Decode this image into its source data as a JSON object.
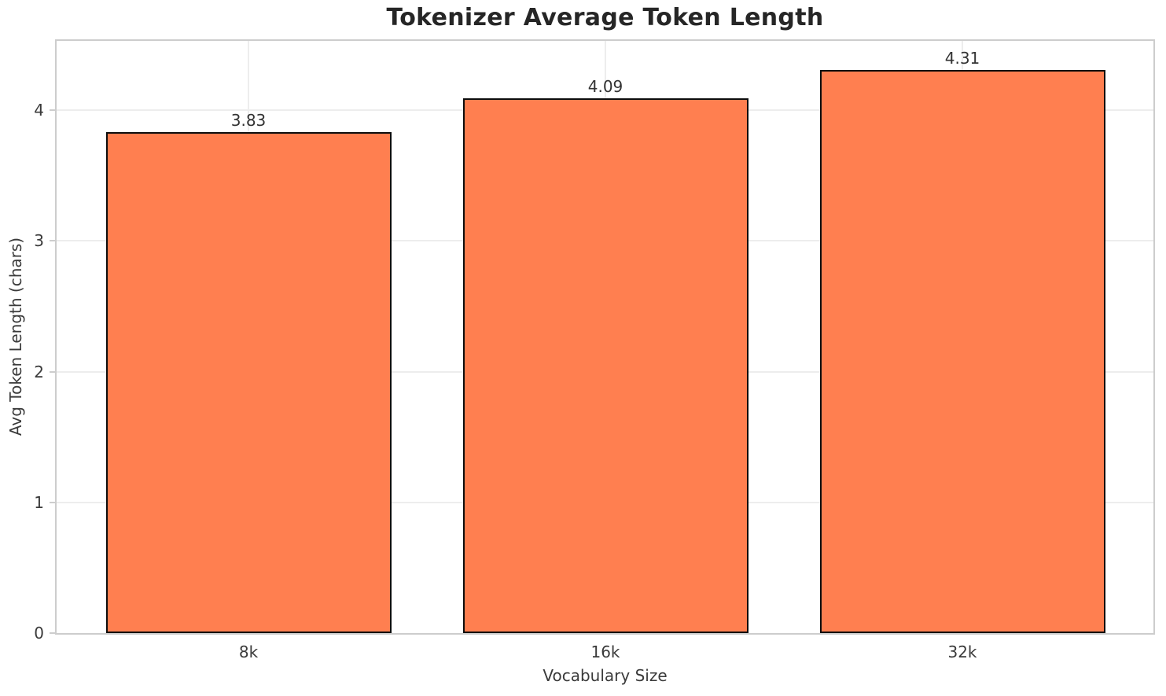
{
  "chart_data": {
    "type": "bar",
    "title": "Tokenizer Average Token Length",
    "xlabel": "Vocabulary Size",
    "ylabel": "Avg Token Length (chars)",
    "categories": [
      "8k",
      "16k",
      "32k"
    ],
    "values": [
      3.83,
      4.09,
      4.31
    ],
    "bar_labels": [
      "3.83",
      "4.09",
      "4.31"
    ],
    "yticks": [
      0,
      1,
      2,
      3,
      4
    ],
    "ytick_labels": [
      "0",
      "1",
      "2",
      "3",
      "4"
    ],
    "ylim": [
      0,
      4.53
    ],
    "grid": true,
    "legend": false,
    "colors": {
      "bar_fill": "#FF7F50",
      "bar_edge": "#0d0d0d",
      "grid_line": "#ededed",
      "spine": "#cdcdcd",
      "tick_text": "#3a3a3a",
      "title_text": "#262626",
      "background": "#ffffff"
    }
  }
}
